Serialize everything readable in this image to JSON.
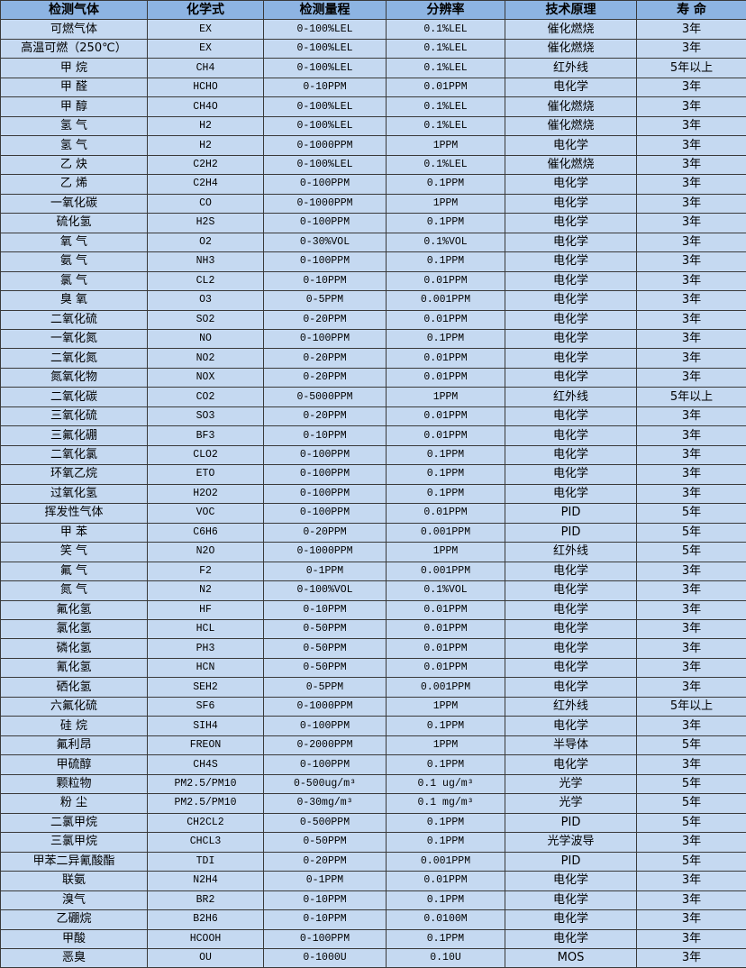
{
  "header": [
    "检测气体",
    "化学式",
    "检测量程",
    "分辨率",
    "技术原理",
    "寿 命"
  ],
  "rows": [
    [
      "可燃气体",
      "EX",
      "0-100%LEL",
      "0.1%LEL",
      "催化燃烧",
      "3年"
    ],
    [
      "高温可燃（250℃）",
      "EX",
      "0-100%LEL",
      "0.1%LEL",
      "催化燃烧",
      "3年"
    ],
    [
      "甲 烷",
      "CH4",
      "0-100%LEL",
      "0.1%LEL",
      "红外线",
      "5年以上"
    ],
    [
      "甲 醛",
      "HCHO",
      "0-10PPM",
      "0.01PPM",
      "电化学",
      "3年"
    ],
    [
      "甲 醇",
      "CH4O",
      "0-100%LEL",
      "0.1%LEL",
      "催化燃烧",
      "3年"
    ],
    [
      "氢 气",
      "H2",
      "0-100%LEL",
      "0.1%LEL",
      "催化燃烧",
      "3年"
    ],
    [
      "氢 气",
      "H2",
      "0-1000PPM",
      "1PPM",
      "电化学",
      "3年"
    ],
    [
      "乙 炔",
      "C2H2",
      "0-100%LEL",
      "0.1%LEL",
      "催化燃烧",
      "3年"
    ],
    [
      "乙 烯",
      "C2H4",
      "0-100PPM",
      "0.1PPM",
      "电化学",
      "3年"
    ],
    [
      "一氧化碳",
      "CO",
      "0-1000PPM",
      "1PPM",
      "电化学",
      "3年"
    ],
    [
      "硫化氢",
      "H2S",
      "0-100PPM",
      "0.1PPM",
      "电化学",
      "3年"
    ],
    [
      "氧 气",
      "O2",
      "0-30%VOL",
      "0.1%VOL",
      "电化学",
      "3年"
    ],
    [
      "氨 气",
      "NH3",
      "0-100PPM",
      "0.1PPM",
      "电化学",
      "3年"
    ],
    [
      "氯 气",
      "CL2",
      "0-10PPM",
      "0.01PPM",
      "电化学",
      "3年"
    ],
    [
      "臭 氧",
      "O3",
      "0-5PPM",
      "0.001PPM",
      "电化学",
      "3年"
    ],
    [
      "二氧化硫",
      "SO2",
      "0-20PPM",
      "0.01PPM",
      "电化学",
      "3年"
    ],
    [
      "一氧化氮",
      "NO",
      "0-100PPM",
      "0.1PPM",
      "电化学",
      "3年"
    ],
    [
      "二氧化氮",
      "NO2",
      "0-20PPM",
      "0.01PPM",
      "电化学",
      "3年"
    ],
    [
      "氮氧化物",
      "NOX",
      "0-20PPM",
      "0.01PPM",
      "电化学",
      "3年"
    ],
    [
      "二氧化碳",
      "CO2",
      "0-5000PPM",
      "1PPM",
      "红外线",
      "5年以上"
    ],
    [
      "三氧化硫",
      "SO3",
      "0-20PPM",
      "0.01PPM",
      "电化学",
      "3年"
    ],
    [
      "三氟化硼",
      "BF3",
      "0-10PPM",
      "0.01PPM",
      "电化学",
      "3年"
    ],
    [
      "二氧化氯",
      "CLO2",
      "0-100PPM",
      "0.1PPM",
      "电化学",
      "3年"
    ],
    [
      "环氧乙烷",
      "ETO",
      "0-100PPM",
      "0.1PPM",
      "电化学",
      "3年"
    ],
    [
      "过氧化氢",
      "H2O2",
      "0-100PPM",
      "0.1PPM",
      "电化学",
      "3年"
    ],
    [
      "挥发性气体",
      "VOC",
      "0-100PPM",
      "0.01PPM",
      "PID",
      "5年"
    ],
    [
      "甲 苯",
      "C6H6",
      "0-20PPM",
      "0.001PPM",
      "PID",
      "5年"
    ],
    [
      "笑 气",
      "N2O",
      "0-1000PPM",
      "1PPM",
      "红外线",
      "5年"
    ],
    [
      "氟 气",
      "F2",
      "0-1PPM",
      "0.001PPM",
      "电化学",
      "3年"
    ],
    [
      "氮 气",
      "N2",
      "0-100%VOL",
      "0.1%VOL",
      "电化学",
      "3年"
    ],
    [
      "氟化氢",
      "HF",
      "0-10PPM",
      "0.01PPM",
      "电化学",
      "3年"
    ],
    [
      "氯化氢",
      "HCL",
      "0-50PPM",
      "0.01PPM",
      "电化学",
      "3年"
    ],
    [
      "磷化氢",
      "PH3",
      "0-50PPM",
      "0.01PPM",
      "电化学",
      "3年"
    ],
    [
      "氰化氢",
      "HCN",
      "0-50PPM",
      "0.01PPM",
      "电化学",
      "3年"
    ],
    [
      "硒化氢",
      "SEH2",
      "0-5PPM",
      "0.001PPM",
      "电化学",
      "3年"
    ],
    [
      "六氟化硫",
      "SF6",
      "0-1000PPM",
      "1PPM",
      "红外线",
      "5年以上"
    ],
    [
      "硅 烷",
      "SIH4",
      "0-100PPM",
      "0.1PPM",
      "电化学",
      "3年"
    ],
    [
      "氟利昂",
      "FREON",
      "0-2000PPM",
      "1PPM",
      "半导体",
      "5年"
    ],
    [
      "甲硫醇",
      "CH4S",
      "0-100PPM",
      "0.1PPM",
      "电化学",
      "3年"
    ],
    [
      "颗粒物",
      "PM2.5/PM10",
      "0-500ug/m³",
      "0.1 ug/m³",
      "光学",
      "5年"
    ],
    [
      "粉 尘",
      "PM2.5/PM10",
      "0-30mg/m³",
      "0.1 mg/m³",
      "光学",
      "5年"
    ],
    [
      "二氯甲烷",
      "CH2CL2",
      "0-500PPM",
      "0.1PPM",
      "PID",
      "5年"
    ],
    [
      "三氯甲烷",
      "CHCL3",
      "0-50PPM",
      "0.1PPM",
      "光学波导",
      "3年"
    ],
    [
      "甲苯二异氰酸酯",
      "TDI",
      "0-20PPM",
      "0.001PPM",
      "PID",
      "5年"
    ],
    [
      "联氨",
      "N2H4",
      "0-1PPM",
      "0.01PPM",
      "电化学",
      "3年"
    ],
    [
      "溴气",
      "BR2",
      "0-10PPM",
      "0.1PPM",
      "电化学",
      "3年"
    ],
    [
      "乙硼烷",
      "B2H6",
      "0-10PPM",
      "0.0100M",
      "电化学",
      "3年"
    ],
    [
      "甲酸",
      "HCOOH",
      "0-100PPM",
      "0.1PPM",
      "电化学",
      "3年"
    ],
    [
      "恶臭",
      "OU",
      "0-1000U",
      "0.10U",
      "MOS",
      "3年"
    ]
  ]
}
